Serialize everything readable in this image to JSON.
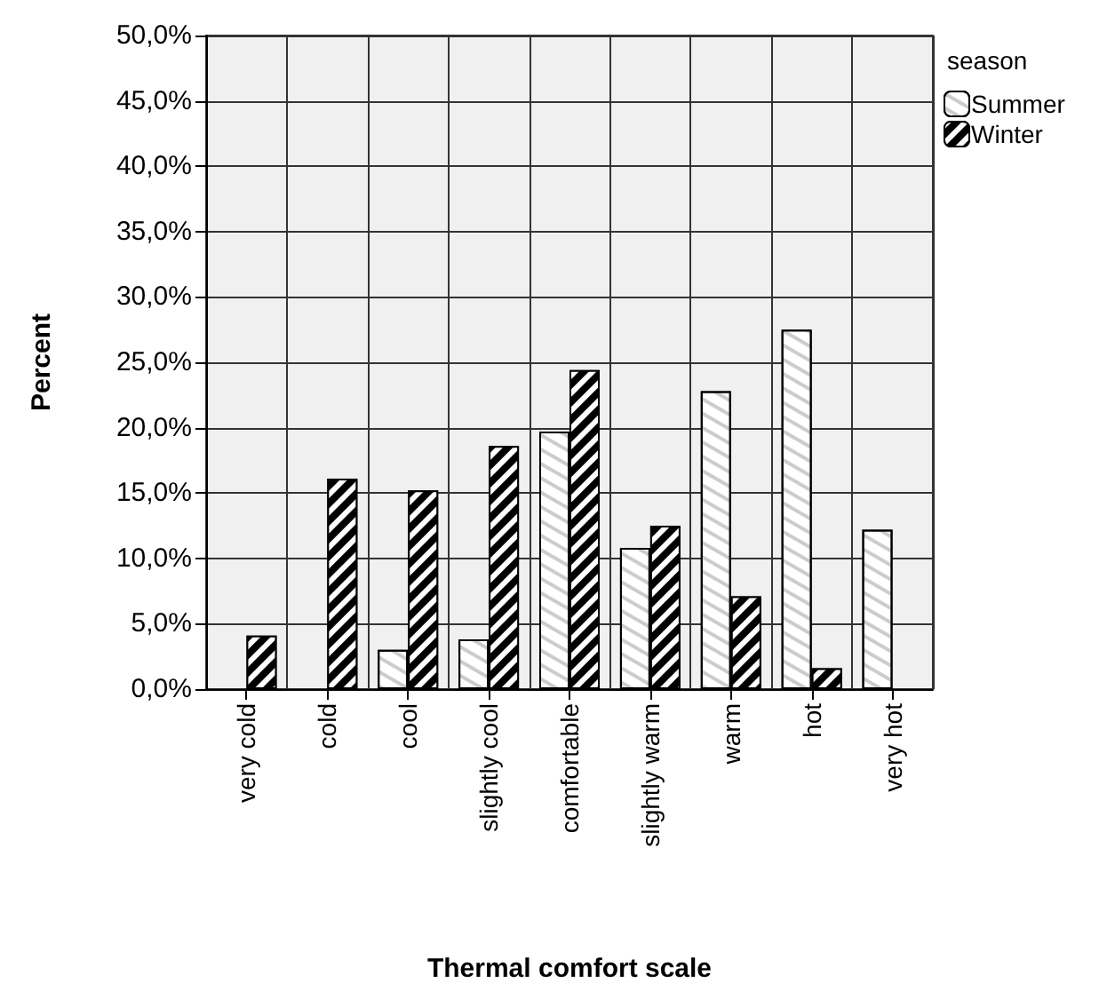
{
  "chart_data": {
    "type": "bar",
    "xlabel": "Thermal comfort scale",
    "ylabel": "Percent",
    "legend_title": "season",
    "legend": "top right",
    "grid": true,
    "categories": [
      "very cold",
      "cold",
      "cool",
      "slightly cool",
      "comfortable",
      "slightly warm",
      "warm",
      "hot",
      "very hot"
    ],
    "series": [
      {
        "name": "Summer",
        "color": "#ffffff",
        "values": [
          null,
          null,
          3.0,
          3.8,
          19.7,
          10.8,
          22.8,
          27.5,
          12.2
        ]
      },
      {
        "name": "Winter",
        "color": "#000000",
        "values": [
          4.1,
          16.1,
          15.2,
          18.6,
          24.4,
          12.5,
          7.1,
          1.6,
          null
        ]
      }
    ],
    "ylim": [
      0,
      50
    ],
    "yticks": [
      {
        "value": 0,
        "label": "0,0%"
      },
      {
        "value": 5,
        "label": "5,0%"
      },
      {
        "value": 10,
        "label": "10,0%"
      },
      {
        "value": 15,
        "label": "15,0%"
      },
      {
        "value": 20,
        "label": "20,0%"
      },
      {
        "value": 25,
        "label": "25,0%"
      },
      {
        "value": 30,
        "label": "30,0%"
      },
      {
        "value": 35,
        "label": "35,0%"
      },
      {
        "value": 40,
        "label": "40,0%"
      },
      {
        "value": 45,
        "label": "45,0%"
      },
      {
        "value": 50,
        "label": "50,0%"
      }
    ]
  }
}
